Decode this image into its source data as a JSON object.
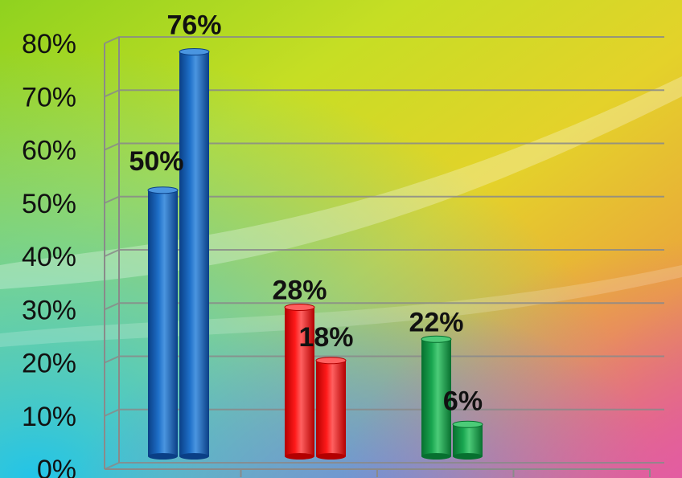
{
  "chart_data": {
    "type": "bar",
    "categories": [
      "",
      "",
      ""
    ],
    "series": [
      {
        "values": [
          50,
          28,
          22
        ]
      },
      {
        "values": [
          76,
          18,
          6
        ]
      }
    ],
    "data_labels": [
      [
        "50%",
        "28%",
        "22%"
      ],
      [
        "76%",
        "18%",
        "6%"
      ]
    ],
    "y_ticks": [
      "0%",
      "10%",
      "20%",
      "30%",
      "40%",
      "50%",
      "60%",
      "70%",
      "80%"
    ],
    "ylim": [
      0,
      80
    ],
    "grid": true,
    "legend": "none",
    "title": "",
    "xlabel": "",
    "ylabel": "",
    "colors": {
      "groups": [
        {
          "dark": "#0a3f86",
          "mid": "#1e6fc8",
          "light": "#4a95e0"
        },
        {
          "dark": "#b30000",
          "mid": "#ff1a1a",
          "light": "#ff6060"
        },
        {
          "dark": "#07702f",
          "mid": "#19a650",
          "light": "#4ccb78"
        }
      ]
    }
  }
}
